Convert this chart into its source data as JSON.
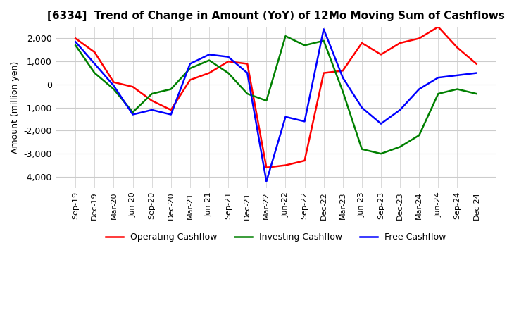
{
  "title": "[6334]  Trend of Change in Amount (YoY) of 12Mo Moving Sum of Cashflows",
  "ylabel": "Amount (million yen)",
  "x_labels": [
    "Sep-19",
    "Dec-19",
    "Mar-20",
    "Jun-20",
    "Sep-20",
    "Dec-20",
    "Mar-21",
    "Jun-21",
    "Sep-21",
    "Dec-21",
    "Mar-22",
    "Jun-22",
    "Sep-22",
    "Dec-22",
    "Mar-23",
    "Jun-23",
    "Sep-23",
    "Dec-23",
    "Mar-24",
    "Jun-24",
    "Sep-24",
    "Dec-24"
  ],
  "operating": [
    2000,
    1400,
    100,
    -100,
    -700,
    -1100,
    200,
    500,
    1000,
    900,
    -3600,
    -3500,
    -3300,
    500,
    600,
    1800,
    1300,
    1800,
    2000,
    2500,
    1600,
    900
  ],
  "investing": [
    1700,
    500,
    -200,
    -1200,
    -400,
    -200,
    700,
    1050,
    500,
    -400,
    -700,
    2100,
    1700,
    1900,
    -300,
    -2800,
    -3000,
    -2700,
    -2200,
    -400,
    -200,
    -400
  ],
  "free": [
    1850,
    900,
    -50,
    -1300,
    -1100,
    -1300,
    900,
    1300,
    1200,
    500,
    -4200,
    -1400,
    -1600,
    2400,
    300,
    -1000,
    -1700,
    -1100,
    -200,
    300,
    400,
    500
  ],
  "ylim": [
    -4500,
    2500
  ],
  "yticks": [
    -4000,
    -3000,
    -2000,
    -1000,
    0,
    1000,
    2000
  ],
  "operating_color": "#ff0000",
  "investing_color": "#008000",
  "free_color": "#0000ff",
  "bg_color": "#ffffff",
  "grid_color": "#cccccc"
}
